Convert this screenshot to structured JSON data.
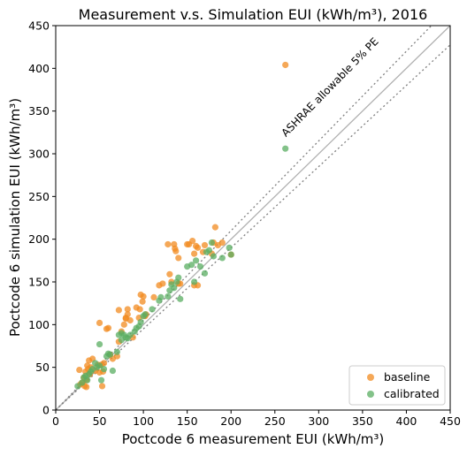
{
  "chart_data": {
    "type": "scatter",
    "title": "Measurement v.s. Simulation EUI (kWh/m³), 2016",
    "xlabel": "Poctcode 6 measurement EUI (kWh/m³)",
    "ylabel": "Poctcode 6 simulation EUI (kWh/m³)",
    "xlim": [
      0,
      450
    ],
    "ylim": [
      0,
      450
    ],
    "xticks": [
      "0",
      "50",
      "100",
      "150",
      "200",
      "250",
      "300",
      "350",
      "400",
      "450"
    ],
    "yticks": [
      "0",
      "50",
      "100",
      "150",
      "200",
      "250",
      "300",
      "350",
      "400",
      "450"
    ],
    "grid": false,
    "legend_position": "bottom-right",
    "annotation": "ASHRAE allowable 5% PE",
    "reference_lines": {
      "identity_color": "#b0b0b0",
      "bound_color": "#808080",
      "bound_pct": 0.05
    },
    "series": [
      {
        "name": "baseline",
        "color": "#f28b20",
        "points": [
          [
            27,
            47
          ],
          [
            28,
            30
          ],
          [
            30,
            32
          ],
          [
            32,
            38
          ],
          [
            33,
            28
          ],
          [
            34,
            45
          ],
          [
            35,
            35
          ],
          [
            35,
            27
          ],
          [
            36,
            52
          ],
          [
            37,
            48
          ],
          [
            38,
            58
          ],
          [
            39,
            42
          ],
          [
            40,
            50
          ],
          [
            42,
            60
          ],
          [
            45,
            46
          ],
          [
            48,
            53
          ],
          [
            50,
            44
          ],
          [
            50,
            102
          ],
          [
            52,
            53
          ],
          [
            53,
            28
          ],
          [
            54,
            45
          ],
          [
            55,
            55
          ],
          [
            58,
            95
          ],
          [
            60,
            96
          ],
          [
            62,
            65
          ],
          [
            65,
            60
          ],
          [
            70,
            63
          ],
          [
            72,
            80
          ],
          [
            72,
            117
          ],
          [
            75,
            92
          ],
          [
            78,
            100
          ],
          [
            80,
            107
          ],
          [
            80,
            108
          ],
          [
            82,
            112
          ],
          [
            82,
            118
          ],
          [
            85,
            105
          ],
          [
            88,
            85
          ],
          [
            92,
            120
          ],
          [
            95,
            108
          ],
          [
            96,
            118
          ],
          [
            97,
            135
          ],
          [
            99,
            127
          ],
          [
            100,
            133
          ],
          [
            102,
            110
          ],
          [
            103,
            112
          ],
          [
            112,
            132
          ],
          [
            118,
            146
          ],
          [
            122,
            148
          ],
          [
            128,
            194
          ],
          [
            130,
            159
          ],
          [
            132,
            150
          ],
          [
            135,
            194
          ],
          [
            136,
            189
          ],
          [
            137,
            186
          ],
          [
            140,
            178
          ],
          [
            140,
            148
          ],
          [
            142,
            148
          ],
          [
            150,
            194
          ],
          [
            152,
            194
          ],
          [
            156,
            198
          ],
          [
            158,
            183
          ],
          [
            158,
            146
          ],
          [
            160,
            192
          ],
          [
            162,
            190
          ],
          [
            162,
            146
          ],
          [
            168,
            185
          ],
          [
            170,
            193
          ],
          [
            178,
            183
          ],
          [
            180,
            196
          ],
          [
            182,
            214
          ],
          [
            185,
            193
          ],
          [
            190,
            196
          ],
          [
            200,
            182
          ],
          [
            262,
            404
          ]
        ]
      },
      {
        "name": "calibrated",
        "color": "#5aae61",
        "points": [
          [
            25,
            28
          ],
          [
            30,
            32
          ],
          [
            32,
            38
          ],
          [
            34,
            40
          ],
          [
            36,
            35
          ],
          [
            38,
            42
          ],
          [
            40,
            45
          ],
          [
            42,
            48
          ],
          [
            45,
            55
          ],
          [
            47,
            50
          ],
          [
            50,
            52
          ],
          [
            50,
            77
          ],
          [
            52,
            35
          ],
          [
            55,
            48
          ],
          [
            58,
            63
          ],
          [
            60,
            66
          ],
          [
            62,
            65
          ],
          [
            65,
            46
          ],
          [
            70,
            68
          ],
          [
            72,
            88
          ],
          [
            75,
            82
          ],
          [
            75,
            90
          ],
          [
            78,
            88
          ],
          [
            80,
            85
          ],
          [
            82,
            84
          ],
          [
            85,
            88
          ],
          [
            90,
            92
          ],
          [
            92,
            96
          ],
          [
            95,
            98
          ],
          [
            97,
            103
          ],
          [
            100,
            110
          ],
          [
            102,
            112
          ],
          [
            110,
            118
          ],
          [
            118,
            128
          ],
          [
            120,
            132
          ],
          [
            128,
            133
          ],
          [
            130,
            140
          ],
          [
            132,
            147
          ],
          [
            135,
            143
          ],
          [
            138,
            150
          ],
          [
            140,
            155
          ],
          [
            142,
            130
          ],
          [
            150,
            168
          ],
          [
            155,
            170
          ],
          [
            158,
            150
          ],
          [
            160,
            175
          ],
          [
            165,
            168
          ],
          [
            170,
            160
          ],
          [
            172,
            185
          ],
          [
            175,
            187
          ],
          [
            178,
            196
          ],
          [
            180,
            180
          ],
          [
            190,
            178
          ],
          [
            198,
            190
          ],
          [
            200,
            182
          ],
          [
            262,
            306
          ]
        ]
      }
    ]
  }
}
